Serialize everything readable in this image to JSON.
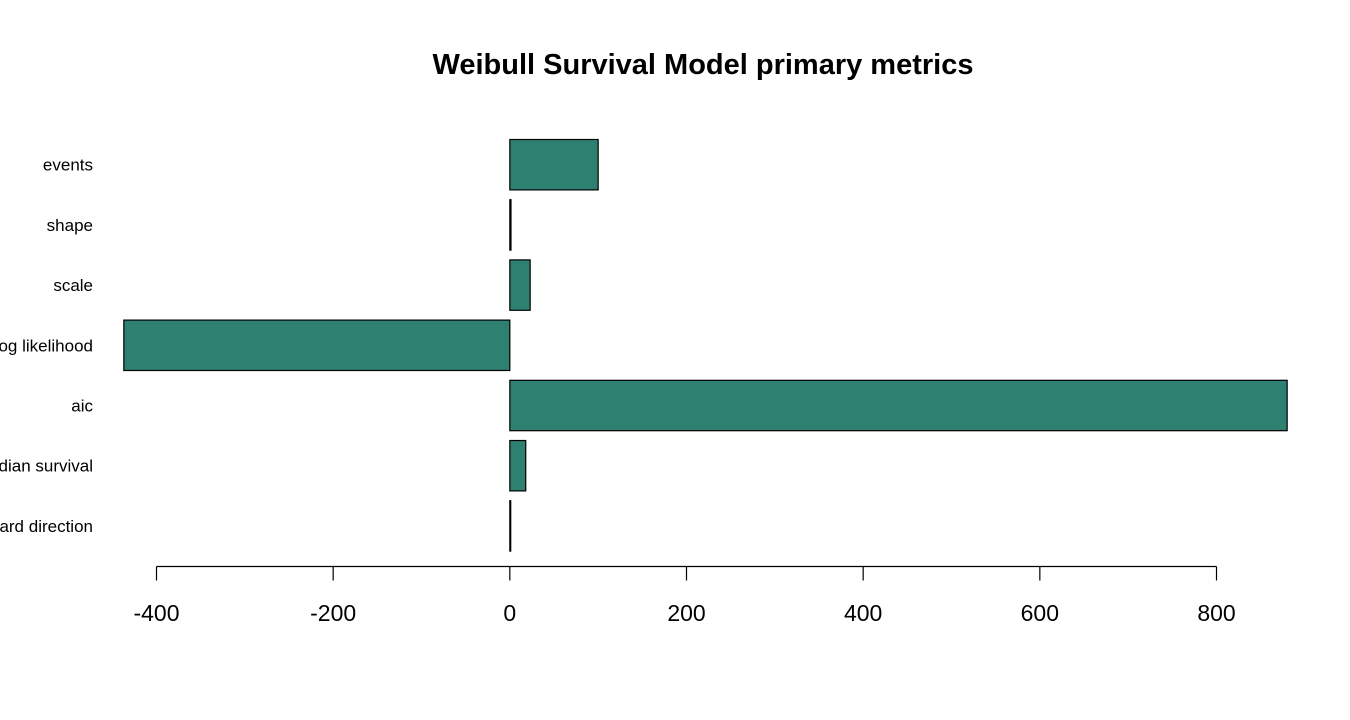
{
  "chart_data": {
    "type": "bar",
    "orientation": "horizontal",
    "title": "Weibull Survival Model primary metrics",
    "xlabel": "",
    "ylabel": "",
    "categories": [
      "events",
      "shape",
      "scale",
      "log likelihood",
      "aic",
      "median survival",
      "hazard direction"
    ],
    "values": [
      100,
      1.3,
      23,
      -437,
      880,
      18,
      1
    ],
    "xlim": [
      -400,
      800
    ],
    "xticks": [
      -400,
      -200,
      0,
      200,
      400,
      600,
      800
    ],
    "xtick_labels": [
      "-400",
      "-200",
      "0",
      "200",
      "400",
      "600",
      "800"
    ],
    "grid": false,
    "legend": "none",
    "bar_color": "#2e8070",
    "bar_border_color": "#000000"
  }
}
